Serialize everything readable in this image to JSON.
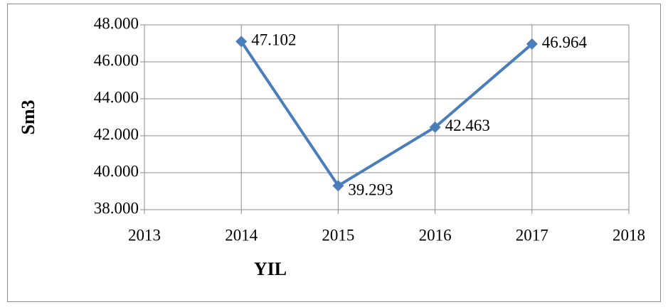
{
  "chart_data": {
    "type": "line",
    "x_label": "YIL",
    "y_label": "Sm3",
    "series": [
      {
        "name": "Sm3",
        "color": "#4a7ebb",
        "x": [
          2014,
          2015,
          2016,
          2017
        ],
        "values": [
          47102,
          39293,
          42463,
          46964
        ],
        "value_labels": [
          "47.102",
          "39.293",
          "42.463",
          "46.964"
        ]
      }
    ],
    "xlim": [
      2013,
      2018
    ],
    "xticks": [
      2013,
      2014,
      2015,
      2016,
      2017,
      2018
    ],
    "ylim": [
      38000,
      48000
    ],
    "yticks": [
      {
        "value": 38000,
        "label": "38.000"
      },
      {
        "value": 40000,
        "label": "40.000"
      },
      {
        "value": 42000,
        "label": "42.000"
      },
      {
        "value": 44000,
        "label": "44.000"
      },
      {
        "value": 46000,
        "label": "46.000"
      },
      {
        "value": 48000,
        "label": "48.000"
      }
    ],
    "grid": true
  }
}
